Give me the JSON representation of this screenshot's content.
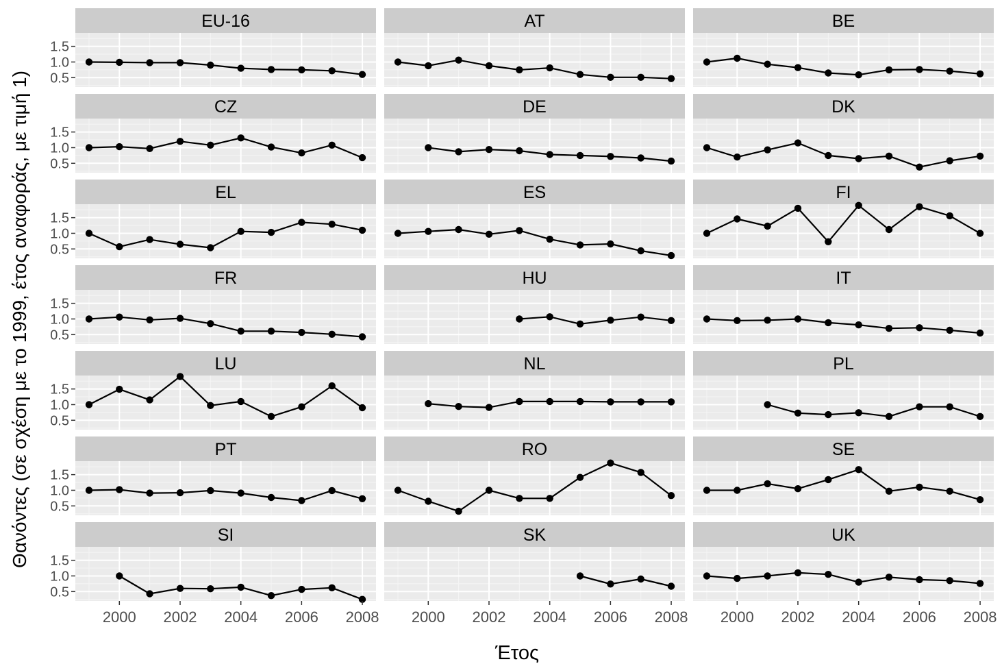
{
  "chart_data": {
    "type": "line",
    "xlabel": "Έτος",
    "ylabel": "Θανόντες (σε σχέση με το 1999, έτος αναφοράς, με τιμή 1)",
    "x": [
      1999,
      2000,
      2001,
      2002,
      2003,
      2004,
      2005,
      2006,
      2007,
      2008
    ],
    "xlim": [
      1998.55,
      2008.45
    ],
    "ylim": [
      0.2,
      1.93
    ],
    "x_tick_labels": [
      "2000",
      "2002",
      "2004",
      "2006",
      "2008"
    ],
    "y_tick_labels": [
      "0.5",
      "1.0",
      "1.5"
    ],
    "panels": [
      {
        "label": "EU-16",
        "values": [
          1.0,
          0.99,
          0.98,
          0.98,
          0.9,
          0.8,
          0.76,
          0.75,
          0.72,
          0.6
        ]
      },
      {
        "label": "AT",
        "values": [
          1.0,
          0.88,
          1.06,
          0.88,
          0.75,
          0.81,
          0.6,
          0.51,
          0.51,
          0.47
        ]
      },
      {
        "label": "BE",
        "values": [
          1.0,
          1.12,
          0.93,
          0.82,
          0.65,
          0.59,
          0.75,
          0.76,
          0.71,
          0.62
        ]
      },
      {
        "label": "CZ",
        "values": [
          1.0,
          1.03,
          0.97,
          1.2,
          1.08,
          1.31,
          1.02,
          0.83,
          1.08,
          0.68
        ]
      },
      {
        "label": "DE",
        "values": [
          null,
          1.0,
          0.87,
          0.94,
          0.9,
          0.78,
          0.75,
          0.72,
          0.67,
          0.57
        ]
      },
      {
        "label": "DK",
        "values": [
          1.0,
          0.7,
          0.93,
          1.15,
          0.75,
          0.65,
          0.73,
          0.38,
          0.58,
          0.73
        ]
      },
      {
        "label": "EL",
        "values": [
          1.0,
          0.57,
          0.8,
          0.65,
          0.54,
          1.06,
          1.03,
          1.35,
          1.29,
          1.1
        ]
      },
      {
        "label": "ES",
        "values": [
          1.0,
          1.06,
          1.12,
          0.97,
          1.09,
          0.81,
          0.63,
          0.66,
          0.44,
          0.29
        ]
      },
      {
        "label": "FI",
        "values": [
          1.0,
          1.46,
          1.23,
          1.8,
          0.73,
          1.89,
          1.12,
          1.85,
          1.56,
          1.0
        ]
      },
      {
        "label": "FR",
        "values": [
          1.0,
          1.06,
          0.97,
          1.02,
          0.85,
          0.61,
          0.61,
          0.57,
          0.51,
          0.43
        ]
      },
      {
        "label": "HU",
        "values": [
          null,
          null,
          null,
          null,
          1.0,
          1.07,
          0.84,
          0.96,
          1.06,
          0.95
        ]
      },
      {
        "label": "IT",
        "values": [
          1.0,
          0.95,
          0.96,
          1.0,
          0.88,
          0.81,
          0.7,
          0.72,
          0.64,
          0.55
        ]
      },
      {
        "label": "LU",
        "values": [
          1.0,
          1.49,
          1.15,
          1.9,
          0.97,
          1.1,
          0.62,
          0.93,
          1.6,
          0.9
        ]
      },
      {
        "label": "NL",
        "values": [
          null,
          1.03,
          0.94,
          0.91,
          1.1,
          1.1,
          1.1,
          1.09,
          1.09,
          1.09
        ]
      },
      {
        "label": "PL",
        "values": [
          null,
          null,
          1.0,
          0.73,
          0.68,
          0.74,
          0.62,
          0.93,
          0.93,
          0.62
        ]
      },
      {
        "label": "PT",
        "values": [
          1.0,
          1.02,
          0.91,
          0.92,
          0.99,
          0.91,
          0.77,
          0.67,
          0.99,
          0.73
        ]
      },
      {
        "label": "RO",
        "values": [
          1.0,
          0.65,
          0.33,
          1.0,
          0.74,
          0.74,
          1.41,
          1.87,
          1.57,
          0.83
        ]
      },
      {
        "label": "SE",
        "values": [
          1.0,
          1.0,
          1.21,
          1.05,
          1.34,
          1.66,
          0.97,
          1.1,
          0.97,
          0.7
        ]
      },
      {
        "label": "SI",
        "values": [
          null,
          1.0,
          0.43,
          0.6,
          0.59,
          0.64,
          0.37,
          0.57,
          0.62,
          0.25
        ]
      },
      {
        "label": "SK",
        "values": [
          null,
          null,
          null,
          null,
          null,
          null,
          1.0,
          0.74,
          0.9,
          0.67
        ]
      },
      {
        "label": "UK",
        "values": [
          1.0,
          0.92,
          1.0,
          1.1,
          1.05,
          0.8,
          0.96,
          0.88,
          0.85,
          0.76
        ]
      }
    ],
    "colors": {
      "panel_background": "#ebebeb",
      "strip_background": "#cccccc",
      "grid_major": "#ffffff",
      "grid_minor": "#f5f5f5",
      "line": "#000000",
      "point": "#000000",
      "tick_text": "#4d4d4d",
      "title_text": "#000000"
    }
  }
}
